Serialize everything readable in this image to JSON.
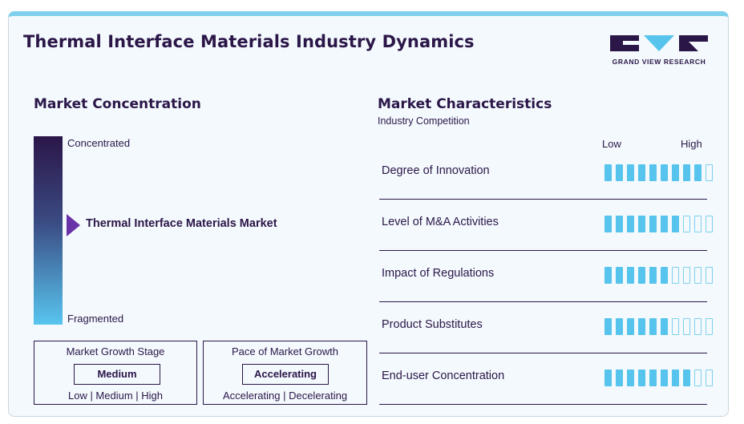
{
  "header": {
    "title": "Thermal Interface Materials Industry Dynamics",
    "logo_text": "GRAND VIEW RESEARCH"
  },
  "concentration": {
    "heading": "Market Concentration",
    "top_label": "Concentrated",
    "bottom_label": "Fragmented",
    "marker_label": "Thermal Interface Materials Market"
  },
  "growth_stage": {
    "title": "Market Growth Stage",
    "value": "Medium",
    "options": "Low  |  Medium  |  High"
  },
  "growth_pace": {
    "title": "Pace of Market Growth",
    "value": "Accelerating",
    "options": "Accelerating  |  Decelerating"
  },
  "characteristics": {
    "heading": "Market Characteristics",
    "subheading": "Industry Competition",
    "low_label": "Low",
    "high_label": "High",
    "total_segments": 10,
    "colors": {
      "filled": "#56c4ec",
      "empty_border": "#7fd0ec"
    },
    "rows": [
      {
        "label": "Degree of Innovation",
        "level": 9
      },
      {
        "label": "Level of M&A Activities",
        "level": 7
      },
      {
        "label": "Impact of Regulations",
        "level": 6
      },
      {
        "label": "Product Substitutes",
        "level": 6
      },
      {
        "label": "End-user Concentration",
        "level": 8
      }
    ]
  }
}
